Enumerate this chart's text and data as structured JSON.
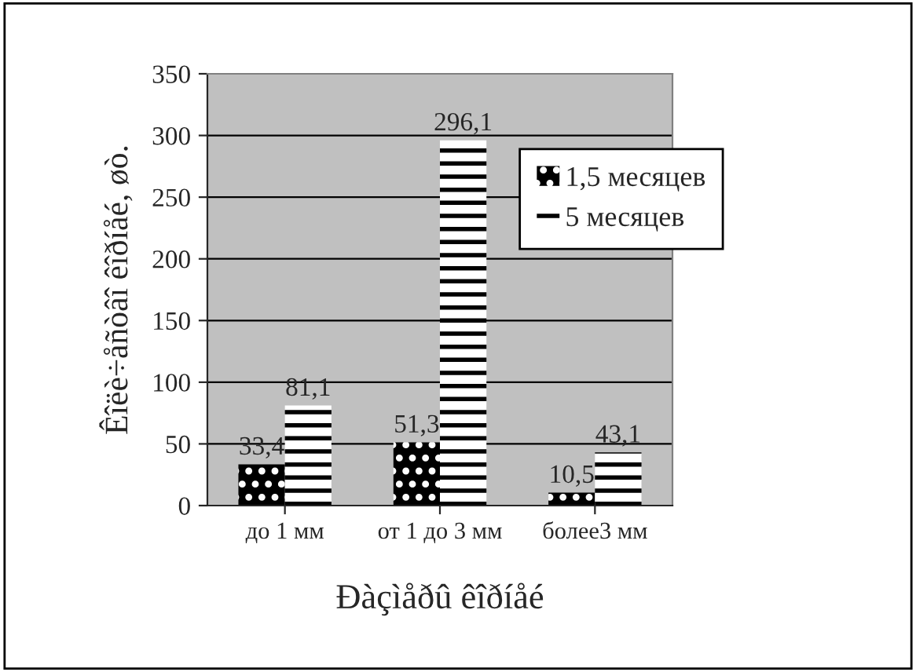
{
  "chart_data": {
    "type": "bar",
    "xlabel": "Ðàçìåðû êîðíåé",
    "ylabel": "Êîëè÷åñòâî êîðíåé, øò.",
    "categories": [
      "до 1 мм",
      "от 1 до 3 мм",
      "более3 мм"
    ],
    "series": [
      {
        "name": "1,5 месяцев",
        "color": "#000000",
        "values": [
          33.4,
          51.3,
          10.5
        ],
        "value_labels": [
          "33,4",
          "51,3",
          "10,5"
        ]
      },
      {
        "name": "5 месяцев",
        "color": "#ffffff",
        "values": [
          81.1,
          296.1,
          43.1
        ],
        "value_labels": [
          "81,1",
          "296,1",
          "43,1"
        ]
      }
    ],
    "ylim": [
      0,
      350
    ],
    "yticks": [
      0,
      50,
      100,
      150,
      200,
      250,
      300,
      350
    ],
    "grid": "y",
    "legend": "top right"
  }
}
